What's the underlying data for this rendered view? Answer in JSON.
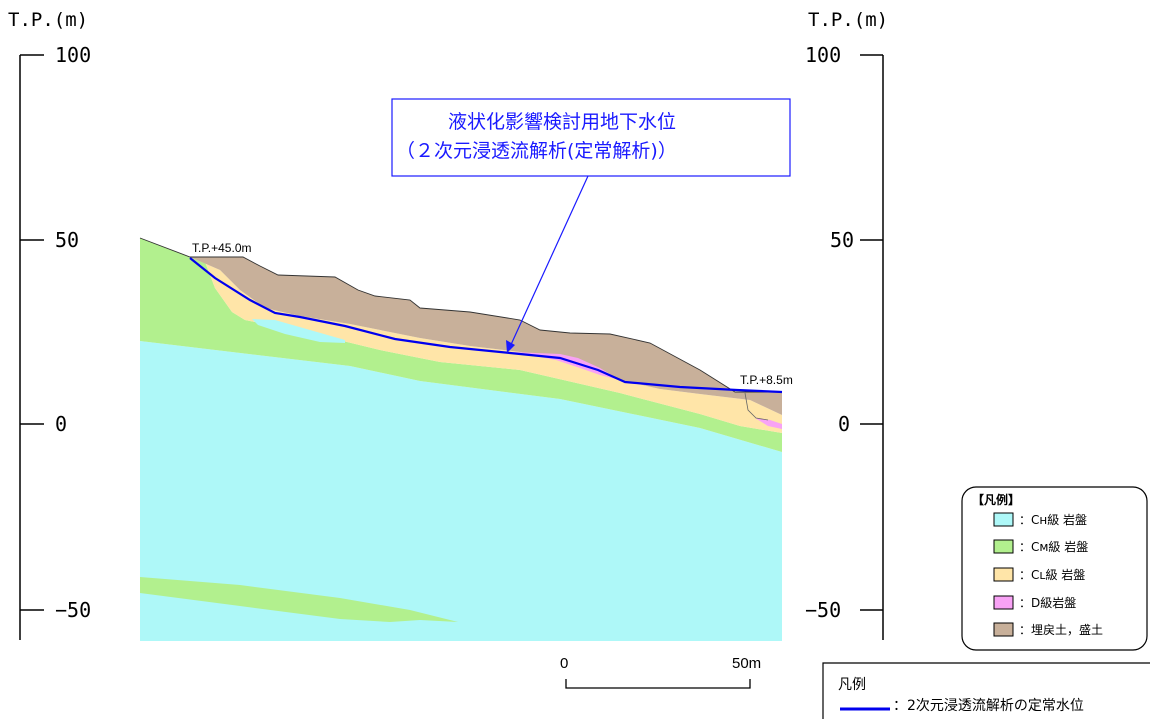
{
  "axis": {
    "left_title": "T.P.(m)",
    "right_title": "T.P.(m)",
    "ticks": [
      {
        "value": 100,
        "label": "100"
      },
      {
        "value": 50,
        "label": "50"
      },
      {
        "value": 0,
        "label": "0"
      },
      {
        "value": -50,
        "label": "−50"
      }
    ]
  },
  "callout": {
    "line1": "液状化影響検討用地下水位",
    "line2": "（２次元浸透流解析(定常解析)）"
  },
  "elevation_labels": {
    "upstream": "T.P.+45.0m",
    "downstream": "T.P.+8.5m"
  },
  "legend": {
    "title": "【凡例】",
    "items": [
      {
        "label": "：Cн級 岩盤",
        "color": "#aef8f8"
      },
      {
        "label": "：Cм級 岩盤",
        "color": "#b2f08e"
      },
      {
        "label": "：Cʟ級 岩盤",
        "color": "#ffe5a8"
      },
      {
        "label": "：D級岩盤",
        "color": "#f8a2f5"
      },
      {
        "label": "：埋戻土，盛土",
        "color": "#c8b09a"
      }
    ]
  },
  "legend2": {
    "title": "凡例",
    "item": "：2次元浸透流解析の定常水位",
    "line_color": "#0000ee"
  },
  "scale": {
    "start_label": "0",
    "end_label": "50m"
  },
  "colors": {
    "ch": "#aef8f8",
    "cm": "#b2f08e",
    "cl": "#ffe5a8",
    "d": "#f8a2f5",
    "fill": "#c8b09a",
    "water": "#0000ee",
    "callout": "#1a1aff"
  }
}
